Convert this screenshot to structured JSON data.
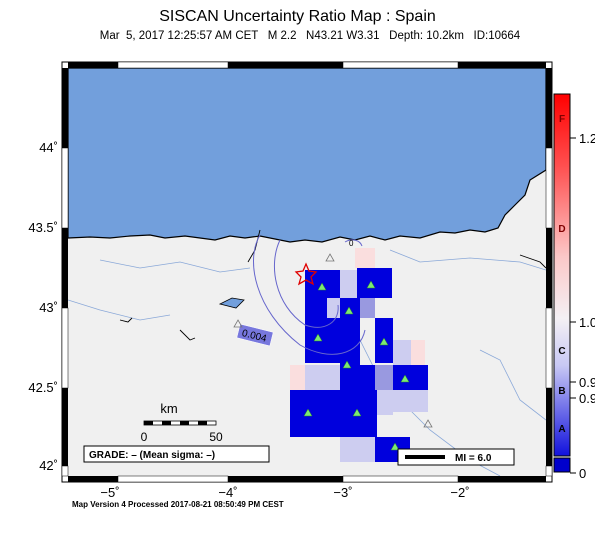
{
  "title": "SISCAN Uncertainty Ratio Map : Spain",
  "subtitle": "Mar  5, 2017 12:25:57 AM CET   M 2.2   N43.21 W3.31   Depth: 10.2km   ID:10664",
  "footer": "Map Version 4 Processed 2017-08-21 08:50:49 PM CEST",
  "axes": {
    "lon_ticks": [
      "−5˚",
      "−4˚",
      "−3˚",
      "−2˚"
    ],
    "lat_ticks": [
      "44˚",
      "43.5˚",
      "43˚",
      "42.5˚",
      "42˚"
    ]
  },
  "colorbar": {
    "letters": [
      "F",
      "D",
      "C",
      "B",
      "A"
    ],
    "values": [
      "1.2",
      "1.0",
      "0.9",
      "0.9",
      "0"
    ]
  },
  "contour_label": "0.004",
  "contour_label_small": "0",
  "scale_bar": {
    "unit": "km",
    "start": "0",
    "end": "50"
  },
  "grade": "GRADE: – (Mean sigma: –)",
  "mi_legend": "MI = 6.0",
  "colors": {
    "sea": "#729fdc",
    "land": "#f0f0f0",
    "high": "#0000dd",
    "medium": "#9999e0",
    "light": "#cdcdf0",
    "faint_red": "#fadede"
  }
}
